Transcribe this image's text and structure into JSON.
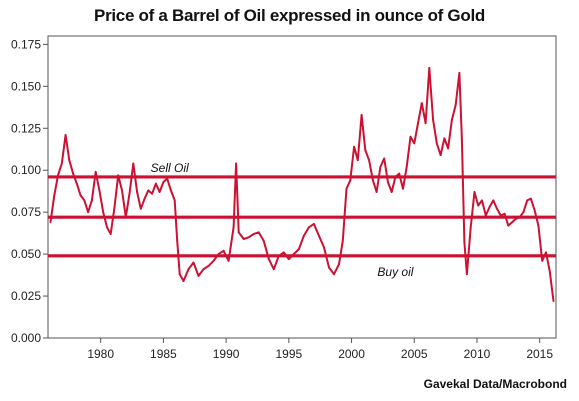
{
  "chart_data": {
    "type": "line",
    "title": "Price of a Barrel of Oil expressed in ounce of Gold",
    "source": "Gavekal Data/Macrobond",
    "xlabel": "",
    "ylabel": "",
    "xlim": [
      1975.8,
      2016.3
    ],
    "ylim": [
      0.0,
      0.18
    ],
    "x_ticks": [
      "1980",
      "1985",
      "1990",
      "1995",
      "2000",
      "2005",
      "2010",
      "2015"
    ],
    "y_ticks": [
      "0.000",
      "0.025",
      "0.050",
      "0.075",
      "0.100",
      "0.125",
      "0.150",
      "0.175"
    ],
    "grid": false,
    "line_color": "#cc1133",
    "series": [
      {
        "x": [
          1976.0,
          1976.3,
          1976.6,
          1976.9,
          1977.2,
          1977.5,
          1977.8,
          1978.1,
          1978.4,
          1978.7,
          1979.0,
          1979.3,
          1979.6,
          1979.9,
          1980.2,
          1980.5,
          1980.8,
          1981.1,
          1981.4,
          1981.7,
          1982.0,
          1982.3,
          1982.6,
          1982.9,
          1983.2,
          1983.5,
          1983.8,
          1984.1,
          1984.4,
          1984.7,
          1985.0,
          1985.3,
          1985.6,
          1985.9,
          1986.1,
          1986.3,
          1986.6,
          1987.0,
          1987.4,
          1987.8,
          1988.2,
          1988.6,
          1989.0,
          1989.4,
          1989.8,
          1990.2,
          1990.6,
          1990.8,
          1991.0,
          1991.4,
          1991.8,
          1992.2,
          1992.6,
          1993.0,
          1993.4,
          1993.8,
          1994.2,
          1994.6,
          1995.0,
          1995.4,
          1995.8,
          1996.2,
          1996.6,
          1997.0,
          1997.4,
          1997.8,
          1998.2,
          1998.6,
          1999.0,
          1999.3,
          1999.6,
          1999.9,
          2000.2,
          2000.5,
          2000.8,
          2001.1,
          2001.4,
          2001.7,
          2002.0,
          2002.3,
          2002.6,
          2002.9,
          2003.2,
          2003.5,
          2003.8,
          2004.1,
          2004.4,
          2004.7,
          2005.0,
          2005.3,
          2005.6,
          2005.9,
          2006.2,
          2006.5,
          2006.8,
          2007.1,
          2007.4,
          2007.7,
          2008.0,
          2008.3,
          2008.6,
          2008.8,
          2009.0,
          2009.2,
          2009.5,
          2009.8,
          2010.1,
          2010.4,
          2010.7,
          2011.0,
          2011.3,
          2011.6,
          2011.9,
          2012.2,
          2012.5,
          2012.8,
          2013.1,
          2013.4,
          2013.7,
          2014.0,
          2014.3,
          2014.6,
          2014.9,
          2015.2,
          2015.5,
          2015.8,
          2016.1
        ],
        "values": [
          0.069,
          0.085,
          0.097,
          0.104,
          0.121,
          0.106,
          0.098,
          0.092,
          0.085,
          0.082,
          0.075,
          0.082,
          0.099,
          0.088,
          0.075,
          0.066,
          0.062,
          0.078,
          0.097,
          0.088,
          0.072,
          0.086,
          0.104,
          0.087,
          0.077,
          0.083,
          0.088,
          0.086,
          0.092,
          0.087,
          0.093,
          0.095,
          0.088,
          0.082,
          0.058,
          0.038,
          0.034,
          0.041,
          0.045,
          0.037,
          0.041,
          0.043,
          0.046,
          0.05,
          0.052,
          0.046,
          0.066,
          0.104,
          0.063,
          0.059,
          0.06,
          0.062,
          0.063,
          0.058,
          0.047,
          0.041,
          0.049,
          0.051,
          0.047,
          0.05,
          0.053,
          0.061,
          0.066,
          0.068,
          0.061,
          0.054,
          0.042,
          0.038,
          0.044,
          0.058,
          0.089,
          0.094,
          0.114,
          0.106,
          0.133,
          0.112,
          0.106,
          0.094,
          0.087,
          0.102,
          0.107,
          0.093,
          0.087,
          0.096,
          0.098,
          0.089,
          0.102,
          0.12,
          0.116,
          0.128,
          0.14,
          0.128,
          0.161,
          0.13,
          0.116,
          0.109,
          0.119,
          0.113,
          0.13,
          0.139,
          0.158,
          0.118,
          0.057,
          0.038,
          0.066,
          0.087,
          0.079,
          0.082,
          0.073,
          0.078,
          0.082,
          0.077,
          0.073,
          0.074,
          0.067,
          0.069,
          0.071,
          0.072,
          0.075,
          0.082,
          0.083,
          0.076,
          0.067,
          0.046,
          0.051,
          0.04,
          0.022
        ]
      }
    ],
    "reference_lines": [
      {
        "name": "Sell Oil",
        "y": 0.096
      },
      {
        "name": "",
        "y": 0.072
      },
      {
        "name": "Buy oil",
        "y": 0.049
      }
    ],
    "annotations": [
      {
        "text": "Sell Oil",
        "x": 1985.5,
        "y": 0.099
      },
      {
        "text": "Buy oil",
        "x": 2003.5,
        "y": 0.037
      }
    ]
  }
}
